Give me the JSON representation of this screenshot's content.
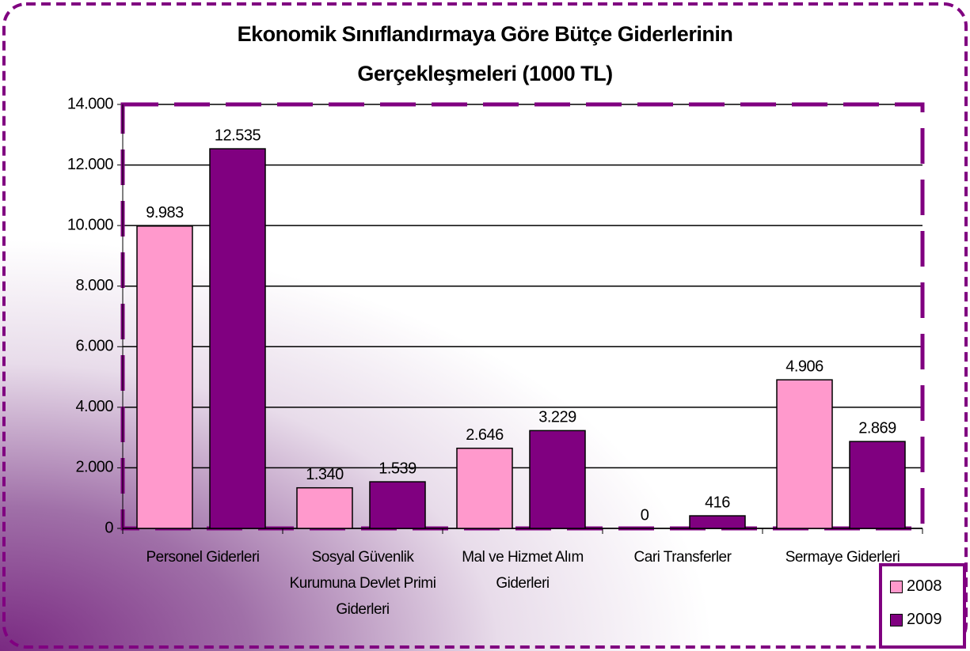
{
  "chart_data": {
    "type": "bar",
    "title": [
      "Ekonomik Sınıflandırmaya Göre Bütçe Giderlerinin",
      "Gerçekleşmeleri (1000 TL)"
    ],
    "categories": [
      "Personel Giderleri",
      "Sosyal Güvenlik Kurumuna Devlet Primi Giderleri",
      "Mal ve Hizmet Alım Giderleri",
      "Cari Transferler",
      "Sermaye Giderleri"
    ],
    "series": [
      {
        "name": "2008",
        "color": "#ff99cc",
        "values": [
          9983,
          1340,
          2646,
          0,
          4906
        ],
        "value_labels": [
          "9.983",
          "1.340",
          "2.646",
          "0",
          "4.906"
        ]
      },
      {
        "name": "2009",
        "color": "#800080",
        "values": [
          12535,
          1539,
          3229,
          416,
          2869
        ],
        "value_labels": [
          "12.535",
          "1.539",
          "3.229",
          "416",
          "2.869"
        ]
      }
    ],
    "ylim": [
      0,
      14000
    ],
    "yticks": [
      0,
      {
        "value": 2000,
        "label": "2.000"
      },
      {
        "value": 4000,
        "label": "4.000"
      },
      {
        "value": 6000,
        "label": "6.000"
      },
      {
        "value": 8000,
        "label": "8.000"
      },
      {
        "value": 10000,
        "label": "10.000"
      },
      {
        "value": 12000,
        "label": "12.000"
      },
      {
        "value": 14000,
        "label": "14.000"
      }
    ],
    "grid": true,
    "legend": "lower-right"
  }
}
